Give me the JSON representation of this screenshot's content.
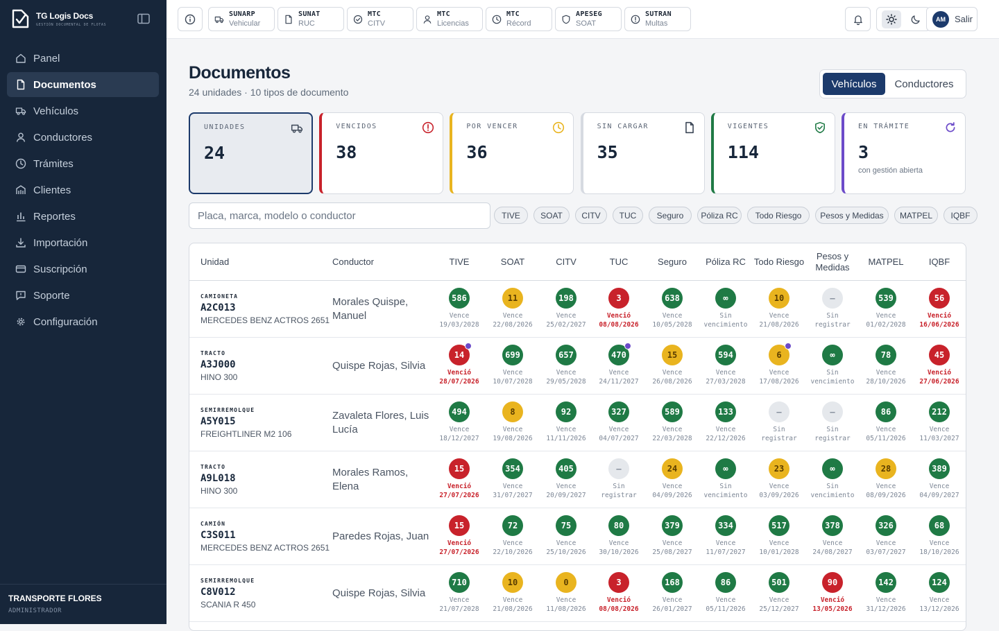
{
  "brand": {
    "name": "TG Logis Docs",
    "tagline": "GESTIÓN DOCUMENTAL DE FLOTAS"
  },
  "nav": [
    {
      "label": "Panel",
      "icon": "home-icon"
    },
    {
      "label": "Documentos",
      "icon": "document-icon",
      "active": true
    },
    {
      "label": "Vehículos",
      "icon": "truck-icon"
    },
    {
      "label": "Conductores",
      "icon": "user-icon"
    },
    {
      "label": "Trámites",
      "icon": "clock-icon"
    },
    {
      "label": "Clientes",
      "icon": "building-icon"
    },
    {
      "label": "Reportes",
      "icon": "bar-chart-icon"
    },
    {
      "label": "Importación",
      "icon": "download-icon"
    },
    {
      "label": "Suscripción",
      "icon": "credit-card-icon"
    },
    {
      "label": "Soporte",
      "icon": "chat-icon"
    },
    {
      "label": "Configuración",
      "icon": "gear-icon"
    }
  ],
  "company": {
    "name": "TRANSPORTE FLORES",
    "role": "ADMINISTRADOR"
  },
  "services": [
    {
      "t1": "SUNARP",
      "t2": "Vehicular",
      "icon": "truck-icon"
    },
    {
      "t1": "SUNAT",
      "t2": "RUC",
      "icon": "document-icon"
    },
    {
      "t1": "MTC",
      "t2": "CITV",
      "icon": "check-circle-icon"
    },
    {
      "t1": "MTC",
      "t2": "Licencias",
      "icon": "user-icon"
    },
    {
      "t1": "MTC",
      "t2": "Récord",
      "icon": "clock-icon"
    },
    {
      "t1": "APESEG",
      "t2": "SOAT",
      "icon": "shield-icon"
    },
    {
      "t1": "SUTRAN",
      "t2": "Multas",
      "icon": "alert-circle-icon"
    }
  ],
  "user": {
    "initials": "AM",
    "logout": "Salir"
  },
  "page": {
    "title": "Documentos",
    "subtitle": "24 unidades · 10 tipos de documento"
  },
  "toggle": {
    "a": "Vehículos",
    "b": "Conductores"
  },
  "colors": {
    "green": "#1f7a45",
    "yellow": "#e9b41f",
    "red": "#c8222b",
    "navy": "#1c3a6b",
    "purple": "#6c4bc9"
  },
  "cards": [
    {
      "label": "UNIDADES",
      "value": "24",
      "note": "",
      "accent": "#1c3a6b",
      "icon": "truck-icon",
      "selected": true
    },
    {
      "label": "VENCIDOS",
      "value": "38",
      "note": "",
      "accent": "#c8222b",
      "icon": "alert-circle-icon"
    },
    {
      "label": "POR VENCER",
      "value": "36",
      "note": "",
      "accent": "#e9b41f",
      "icon": "clock-icon"
    },
    {
      "label": "SIN CARGAR",
      "value": "35",
      "note": "",
      "accent": "#d6dae1",
      "icon": "document-icon"
    },
    {
      "label": "VIGENTES",
      "value": "114",
      "note": "",
      "accent": "#1f7a45",
      "icon": "shield-check-icon"
    },
    {
      "label": "EN TRÁMITE",
      "value": "3",
      "note": "con gestión abierta",
      "accent": "#6c4bc9",
      "icon": "refresh-icon"
    }
  ],
  "search": {
    "placeholder": "Placa, marca, modelo o conductor"
  },
  "chips": [
    "TIVE",
    "SOAT",
    "CITV",
    "TUC",
    "Seguro",
    "Póliza RC",
    "Todo Riesgo",
    "Pesos y Medidas",
    "MATPEL",
    "IQBF"
  ],
  "table": {
    "col_unit": "Unidad",
    "col_driver": "Conductor",
    "doc_cols": [
      "TIVE",
      "SOAT",
      "CITV",
      "TUC",
      "Seguro",
      "Póliza RC",
      "Todo Riesgo",
      "Pesos y Medidas",
      "MATPEL",
      "IQBF"
    ],
    "rows": [
      {
        "type": "CAMIONETA",
        "plate": "A2C013",
        "model": "MERCEDES BENZ ACTROS 2651",
        "driver": "Morales Quispe, Manuel",
        "cells": [
          {
            "s": "g",
            "v": "586",
            "l1": "Vence",
            "l2": "19/03/2028"
          },
          {
            "s": "y",
            "v": "11",
            "l1": "Vence",
            "l2": "22/08/2026"
          },
          {
            "s": "g",
            "v": "198",
            "l1": "Vence",
            "l2": "25/02/2027"
          },
          {
            "s": "r",
            "v": "3",
            "l1": "Venció",
            "l2": "08/08/2026"
          },
          {
            "s": "g",
            "v": "638",
            "l1": "Vence",
            "l2": "10/05/2028"
          },
          {
            "s": "g",
            "v": "∞",
            "l1": "Sin",
            "l2": "vencimiento"
          },
          {
            "s": "y",
            "v": "10",
            "l1": "Vence",
            "l2": "21/08/2026"
          },
          {
            "s": "n",
            "v": "–",
            "l1": "Sin",
            "l2": "registrar"
          },
          {
            "s": "g",
            "v": "539",
            "l1": "Vence",
            "l2": "01/02/2028"
          },
          {
            "s": "r",
            "v": "56",
            "l1": "Venció",
            "l2": "16/06/2026"
          }
        ]
      },
      {
        "type": "TRACTO",
        "plate": "A3J000",
        "model": "HINO 300",
        "driver": "Quispe Rojas, Silvia",
        "cells": [
          {
            "s": "r",
            "v": "14",
            "l1": "Venció",
            "l2": "28/07/2026",
            "m": true
          },
          {
            "s": "g",
            "v": "699",
            "l1": "Vence",
            "l2": "10/07/2028"
          },
          {
            "s": "g",
            "v": "657",
            "l1": "Vence",
            "l2": "29/05/2028"
          },
          {
            "s": "g",
            "v": "470",
            "l1": "Vence",
            "l2": "24/11/2027",
            "m": true
          },
          {
            "s": "y",
            "v": "15",
            "l1": "Vence",
            "l2": "26/08/2026"
          },
          {
            "s": "g",
            "v": "594",
            "l1": "Vence",
            "l2": "27/03/2028"
          },
          {
            "s": "y",
            "v": "6",
            "l1": "Vence",
            "l2": "17/08/2026",
            "m": true
          },
          {
            "s": "g",
            "v": "∞",
            "l1": "Sin",
            "l2": "vencimiento"
          },
          {
            "s": "g",
            "v": "78",
            "l1": "Vence",
            "l2": "28/10/2026"
          },
          {
            "s": "r",
            "v": "45",
            "l1": "Venció",
            "l2": "27/06/2026"
          }
        ]
      },
      {
        "type": "SEMIRREMOLQUE",
        "plate": "A5Y015",
        "model": "FREIGHTLINER M2 106",
        "driver": "Zavaleta Flores, Luis Lucía",
        "cells": [
          {
            "s": "g",
            "v": "494",
            "l1": "Vence",
            "l2": "18/12/2027"
          },
          {
            "s": "y",
            "v": "8",
            "l1": "Vence",
            "l2": "19/08/2026"
          },
          {
            "s": "g",
            "v": "92",
            "l1": "Vence",
            "l2": "11/11/2026"
          },
          {
            "s": "g",
            "v": "327",
            "l1": "Vence",
            "l2": "04/07/2027"
          },
          {
            "s": "g",
            "v": "589",
            "l1": "Vence",
            "l2": "22/03/2028"
          },
          {
            "s": "g",
            "v": "133",
            "l1": "Vence",
            "l2": "22/12/2026"
          },
          {
            "s": "n",
            "v": "–",
            "l1": "Sin",
            "l2": "registrar"
          },
          {
            "s": "n",
            "v": "–",
            "l1": "Sin",
            "l2": "registrar"
          },
          {
            "s": "g",
            "v": "86",
            "l1": "Vence",
            "l2": "05/11/2026"
          },
          {
            "s": "g",
            "v": "212",
            "l1": "Vence",
            "l2": "11/03/2027"
          }
        ]
      },
      {
        "type": "TRACTO",
        "plate": "A9L018",
        "model": "HINO 300",
        "driver": "Morales Ramos, Elena",
        "cells": [
          {
            "s": "r",
            "v": "15",
            "l1": "Venció",
            "l2": "27/07/2026"
          },
          {
            "s": "g",
            "v": "354",
            "l1": "Vence",
            "l2": "31/07/2027"
          },
          {
            "s": "g",
            "v": "405",
            "l1": "Vence",
            "l2": "20/09/2027"
          },
          {
            "s": "n",
            "v": "–",
            "l1": "Sin",
            "l2": "registrar"
          },
          {
            "s": "y",
            "v": "24",
            "l1": "Vence",
            "l2": "04/09/2026"
          },
          {
            "s": "g",
            "v": "∞",
            "l1": "Sin",
            "l2": "vencimiento"
          },
          {
            "s": "y",
            "v": "23",
            "l1": "Vence",
            "l2": "03/09/2026"
          },
          {
            "s": "g",
            "v": "∞",
            "l1": "Sin",
            "l2": "vencimiento"
          },
          {
            "s": "y",
            "v": "28",
            "l1": "Vence",
            "l2": "08/09/2026"
          },
          {
            "s": "g",
            "v": "389",
            "l1": "Vence",
            "l2": "04/09/2027"
          }
        ]
      },
      {
        "type": "CAMIÓN",
        "plate": "C3S011",
        "model": "MERCEDES BENZ ACTROS 2651",
        "driver": "Paredes Rojas, Juan",
        "cells": [
          {
            "s": "r",
            "v": "15",
            "l1": "Venció",
            "l2": "27/07/2026"
          },
          {
            "s": "g",
            "v": "72",
            "l1": "Vence",
            "l2": "22/10/2026"
          },
          {
            "s": "g",
            "v": "75",
            "l1": "Vence",
            "l2": "25/10/2026"
          },
          {
            "s": "g",
            "v": "80",
            "l1": "Vence",
            "l2": "30/10/2026"
          },
          {
            "s": "g",
            "v": "379",
            "l1": "Vence",
            "l2": "25/08/2027"
          },
          {
            "s": "g",
            "v": "334",
            "l1": "Vence",
            "l2": "11/07/2027"
          },
          {
            "s": "g",
            "v": "517",
            "l1": "Vence",
            "l2": "10/01/2028"
          },
          {
            "s": "g",
            "v": "378",
            "l1": "Vence",
            "l2": "24/08/2027"
          },
          {
            "s": "g",
            "v": "326",
            "l1": "Vence",
            "l2": "03/07/2027"
          },
          {
            "s": "g",
            "v": "68",
            "l1": "Vence",
            "l2": "18/10/2026"
          }
        ]
      },
      {
        "type": "SEMIRREMOLQUE",
        "plate": "C8V012",
        "model": "SCANIA R 450",
        "driver": "Quispe Rojas, Silvia",
        "cells": [
          {
            "s": "g",
            "v": "710",
            "l1": "Vence",
            "l2": "21/07/2028"
          },
          {
            "s": "y",
            "v": "10",
            "l1": "Vence",
            "l2": "21/08/2026"
          },
          {
            "s": "y",
            "v": "0",
            "l1": "Vence",
            "l2": "11/08/2026"
          },
          {
            "s": "r",
            "v": "3",
            "l1": "Venció",
            "l2": "08/08/2026"
          },
          {
            "s": "g",
            "v": "168",
            "l1": "Vence",
            "l2": "26/01/2027"
          },
          {
            "s": "g",
            "v": "86",
            "l1": "Vence",
            "l2": "05/11/2026"
          },
          {
            "s": "g",
            "v": "501",
            "l1": "Vence",
            "l2": "25/12/2027"
          },
          {
            "s": "r",
            "v": "90",
            "l1": "Venció",
            "l2": "13/05/2026"
          },
          {
            "s": "g",
            "v": "142",
            "l1": "Vence",
            "l2": "31/12/2026"
          },
          {
            "s": "g",
            "v": "124",
            "l1": "Vence",
            "l2": "13/12/2026"
          }
        ]
      }
    ]
  }
}
